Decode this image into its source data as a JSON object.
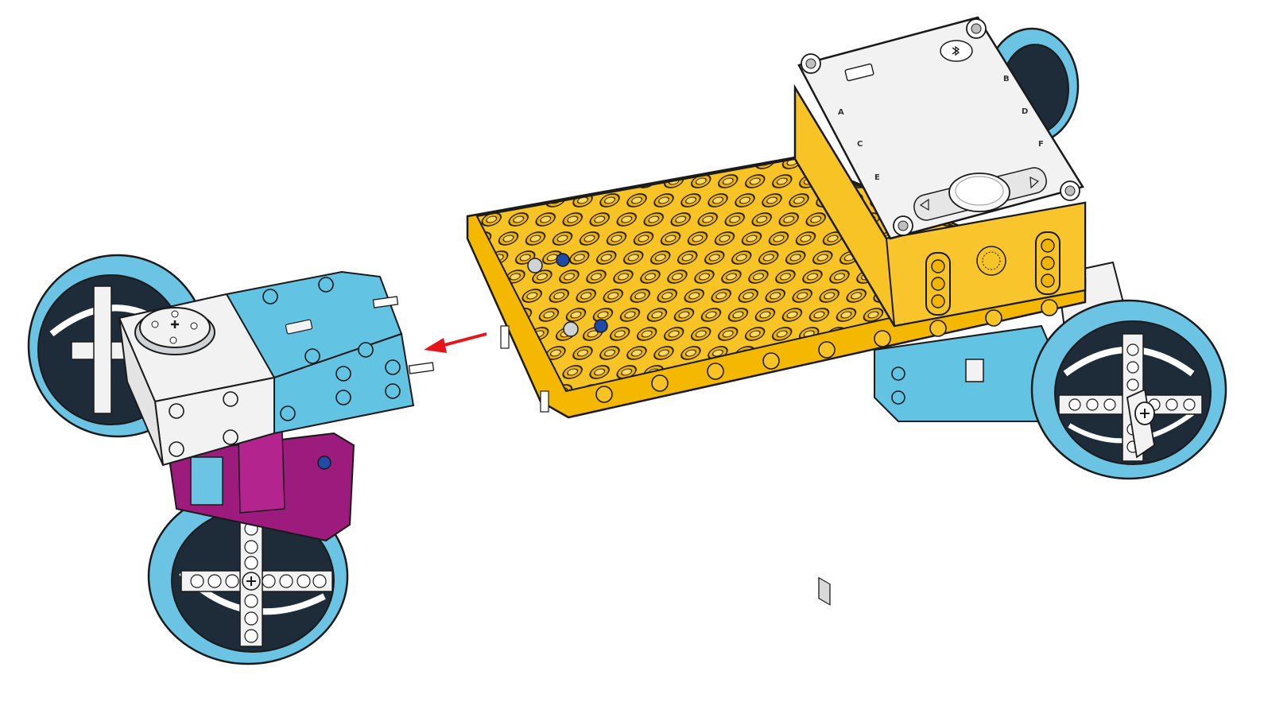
{
  "diagram": {
    "type": "assembly-instruction",
    "arrow_color": "#e8141b",
    "colors": {
      "plate_yellow": "#f7c325",
      "hub_white": "#f2f2f2",
      "motor_blue": "#62c3e3",
      "frame_magenta": "#9c1b7c",
      "tire_blue": "#6cc4e4",
      "hub_dark": "#1e2c3a",
      "outline": "#1a1a1a"
    },
    "hub": {
      "ports": [
        "A",
        "C",
        "E",
        "B",
        "D",
        "F"
      ]
    },
    "icons": [
      "hub-center-button-icon",
      "hub-left-arrow-icon",
      "hub-right-arrow-icon",
      "bluetooth-button-icon",
      "speaker-icon"
    ]
  }
}
